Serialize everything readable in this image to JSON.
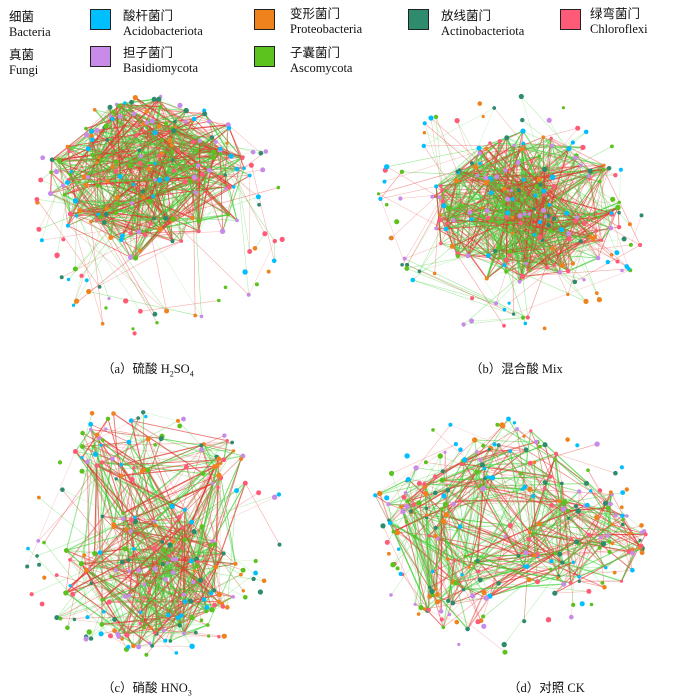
{
  "legend": {
    "bacteria": {
      "cn": "细菌",
      "en": "Bacteria"
    },
    "fungi": {
      "cn": "真菌",
      "en": "Fungi"
    },
    "taxa": [
      {
        "cn": "酸杆菌门",
        "en": "Acidobacteriota",
        "color": "#00BFFF"
      },
      {
        "cn": "变形菌门",
        "en": "Proteobacteria",
        "color": "#F0821E"
      },
      {
        "cn": "放线菌门",
        "en": "Actinobacteriota",
        "color": "#2E8B6E"
      },
      {
        "cn": "绿弯菌门",
        "en": "Chloroflexi",
        "color": "#FF5A78"
      },
      {
        "cn": "担子菌门",
        "en": "Basidiomycota",
        "color": "#C98BE8"
      },
      {
        "cn": "子囊菌门",
        "en": "Ascomycota",
        "color": "#5CC21E"
      }
    ]
  },
  "edge_colors": {
    "positive": "#E53935",
    "negative": "#43D13A"
  },
  "panels": [
    {
      "id": "a",
      "caption_prefix": "（a）硫酸",
      "formula_main": "H",
      "formula_sub1": "2",
      "formula_mid": "SO",
      "formula_sub2": "4"
    },
    {
      "id": "b",
      "caption_prefix": "（b）混合酸",
      "formula_main": "Mix"
    },
    {
      "id": "c",
      "caption_prefix": "（c）硝酸",
      "formula_main": "HNO",
      "formula_sub1": "3"
    },
    {
      "id": "d",
      "caption_prefix": "（d）对照",
      "formula_main": "CK"
    }
  ]
}
